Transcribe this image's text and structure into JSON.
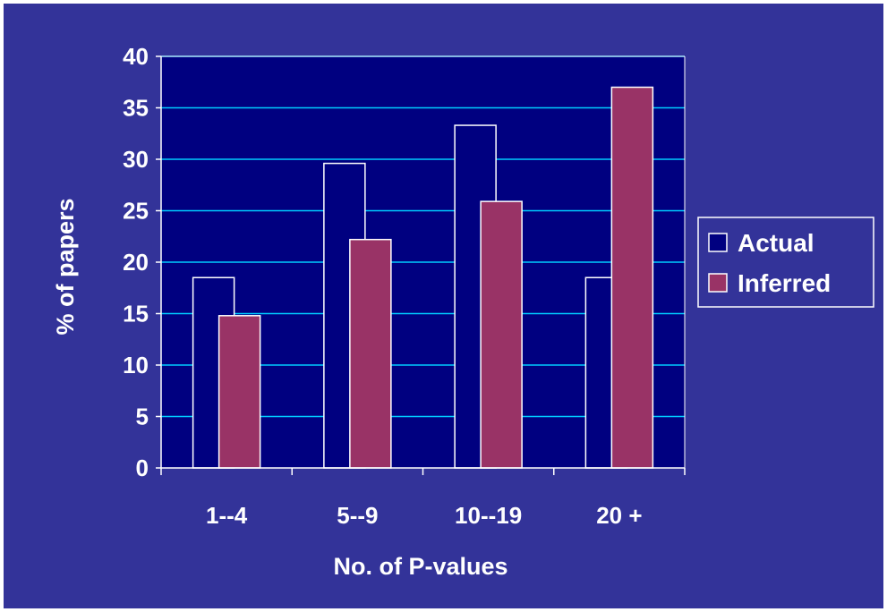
{
  "chart_data": {
    "type": "bar",
    "xlabel": "No. of P-values",
    "ylabel": "% of papers",
    "categories": [
      "1--4",
      "5--9",
      "10--19",
      "20 +"
    ],
    "series": [
      {
        "name": "Actual",
        "values": [
          18.5,
          29.6,
          33.3,
          18.5
        ],
        "color": "#000080",
        "edge": "#ffffff"
      },
      {
        "name": "Inferred",
        "values": [
          14.8,
          22.2,
          25.9,
          37.0
        ],
        "color": "#993366",
        "edge": "#ffffff"
      }
    ],
    "ylim": [
      0,
      40
    ],
    "yticks": [
      0,
      5,
      10,
      15,
      20,
      25,
      30,
      35,
      40
    ],
    "grid": true,
    "legend": "right"
  },
  "colors": {
    "background": "#333399",
    "plot_area": "#000080",
    "gridline": "#00ccff",
    "text": "#ffffff"
  }
}
